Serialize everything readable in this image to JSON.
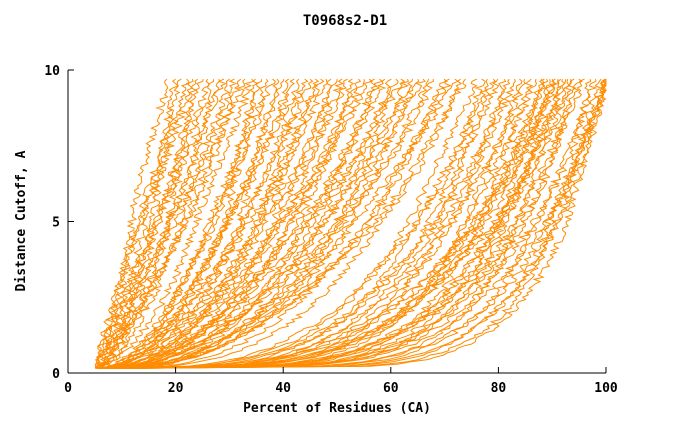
{
  "chart_data": {
    "type": "line",
    "title": "T0968s2-D1",
    "xlabel": "Percent of Residues (CA)",
    "ylabel": "Distance Cutoff, A",
    "xlim": [
      0,
      100
    ],
    "ylim": [
      0,
      10
    ],
    "x_ticks": [
      "0",
      "20",
      "40",
      "60",
      "80",
      "100"
    ],
    "y_ticks": [
      "0",
      "5",
      "10"
    ],
    "grid": false,
    "legend": null,
    "series_color": "#FF8C00",
    "axis_color": "#000000",
    "series_count": 90,
    "curve_y_start": 0.15,
    "curve_y_end": 9.7,
    "curve_format": "[x_percent_at_bottom, x_percent_at_top, shape_exponent] ; x(y)=x0+(x1-x0)*u^p, u normalized cutoff",
    "curves": [
      [
        5.0,
        18.5,
        0.95
      ],
      [
        5.3,
        20,
        0.85
      ],
      [
        5.1,
        21,
        1.0
      ],
      [
        5.6,
        22,
        0.8
      ],
      [
        5.2,
        23,
        0.9
      ],
      [
        5.8,
        24,
        0.75
      ],
      [
        5.4,
        25,
        0.95
      ],
      [
        6.0,
        26,
        0.7
      ],
      [
        5.5,
        27,
        0.85
      ],
      [
        6.2,
        28,
        0.8
      ],
      [
        5.7,
        29,
        0.9
      ],
      [
        6.4,
        30,
        0.7
      ],
      [
        5.9,
        31,
        0.8
      ],
      [
        6.6,
        32,
        0.75
      ],
      [
        6.1,
        33,
        0.85
      ],
      [
        5.2,
        34,
        0.6
      ],
      [
        5.9,
        35,
        0.5
      ],
      [
        6.3,
        36,
        0.55
      ],
      [
        5.4,
        37,
        0.45
      ],
      [
        6.0,
        38,
        0.6
      ],
      [
        6.5,
        39,
        0.5
      ],
      [
        5.6,
        40,
        0.55
      ],
      [
        6.1,
        41,
        0.45
      ],
      [
        6.7,
        42,
        0.6
      ],
      [
        5.8,
        43,
        0.5
      ],
      [
        6.2,
        44,
        0.4
      ],
      [
        6.8,
        45,
        0.55
      ],
      [
        5.9,
        46,
        0.45
      ],
      [
        6.3,
        47,
        0.6
      ],
      [
        7.0,
        48,
        0.5
      ],
      [
        6.0,
        49,
        0.4
      ],
      [
        6.4,
        50,
        0.55
      ],
      [
        7.1,
        51,
        0.45
      ],
      [
        6.1,
        52,
        0.5
      ],
      [
        6.5,
        53,
        0.4
      ],
      [
        7.2,
        54,
        0.55
      ],
      [
        6.2,
        55,
        0.45
      ],
      [
        6.6,
        56,
        0.5
      ],
      [
        7.3,
        57,
        0.4
      ],
      [
        6.3,
        58,
        0.5
      ],
      [
        6.7,
        59,
        0.45
      ],
      [
        7.4,
        60,
        0.4
      ],
      [
        6.4,
        61,
        0.5
      ],
      [
        6.8,
        62,
        0.45
      ],
      [
        7.5,
        63,
        0.38
      ],
      [
        6.5,
        64,
        0.48
      ],
      [
        6.9,
        65,
        0.42
      ],
      [
        7.6,
        66,
        0.5
      ],
      [
        6.6,
        67,
        0.4
      ],
      [
        7.0,
        68,
        0.45
      ],
      [
        7.7,
        70,
        0.38
      ],
      [
        6.7,
        71,
        0.42
      ],
      [
        7.1,
        72,
        0.48
      ],
      [
        7.8,
        73,
        0.36
      ],
      [
        6.8,
        74,
        0.44
      ],
      [
        5.5,
        76,
        0.3
      ],
      [
        6.0,
        77,
        0.26
      ],
      [
        6.6,
        78,
        0.3
      ],
      [
        5.7,
        79,
        0.24
      ],
      [
        6.2,
        80,
        0.28
      ],
      [
        6.8,
        81,
        0.22
      ],
      [
        5.9,
        82,
        0.3
      ],
      [
        6.4,
        83,
        0.25
      ],
      [
        7.0,
        84,
        0.2
      ],
      [
        6.1,
        85,
        0.28
      ],
      [
        6.6,
        86,
        0.22
      ],
      [
        7.2,
        87,
        0.26
      ],
      [
        6.3,
        88,
        0.2
      ],
      [
        6.8,
        88.5,
        0.24
      ],
      [
        7.4,
        89,
        0.28
      ],
      [
        6.5,
        89.5,
        0.18
      ],
      [
        7.0,
        90,
        0.24
      ],
      [
        7.6,
        90.5,
        0.2
      ],
      [
        6.7,
        91,
        0.26
      ],
      [
        7.2,
        91.5,
        0.18
      ],
      [
        7.8,
        92,
        0.22
      ],
      [
        6.9,
        92.5,
        0.26
      ],
      [
        7.4,
        93,
        0.18
      ],
      [
        8.0,
        93.5,
        0.22
      ],
      [
        7.1,
        94,
        0.16
      ],
      [
        7.6,
        95,
        0.2
      ],
      [
        8.2,
        96,
        0.24
      ],
      [
        7.3,
        97,
        0.16
      ],
      [
        7.8,
        98,
        0.2
      ],
      [
        8.4,
        99,
        0.15
      ],
      [
        7.5,
        100,
        0.18
      ],
      [
        8.0,
        100,
        0.14
      ],
      [
        8.6,
        100,
        0.2
      ],
      [
        7.7,
        100,
        0.13
      ],
      [
        8.2,
        100,
        0.16
      ]
    ]
  }
}
